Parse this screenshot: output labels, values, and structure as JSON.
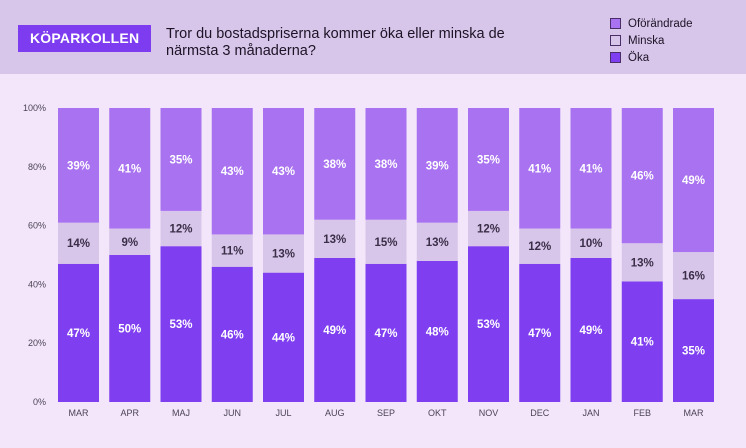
{
  "brand": "KÖPARKOLLEN",
  "question": "Tror du bostadspriserna kommer öka eller minska de närmsta 3 månaderna?",
  "colors": {
    "okar": "#7f3ff0",
    "minskar": "#d8c6ea",
    "oforandrade": "#a972f0"
  },
  "legend": [
    {
      "label": "Oförändrade",
      "color": "#a972f0"
    },
    {
      "label": "Minska",
      "color": "#d8c6ea"
    },
    {
      "label": "Öka",
      "color": "#7f3ff0"
    }
  ],
  "chart_data": {
    "type": "bar",
    "stacked": true,
    "title": "Tror du bostadspriserna kommer öka eller minska de närmsta 3 månaderna?",
    "categories": [
      "MAR",
      "APR",
      "MAJ",
      "JUN",
      "JUL",
      "AUG",
      "SEP",
      "OKT",
      "NOV",
      "DEC",
      "JAN",
      "FEB",
      "MAR"
    ],
    "series": [
      {
        "name": "Öka",
        "values": [
          47,
          50,
          53,
          46,
          44,
          49,
          47,
          48,
          53,
          47,
          49,
          41,
          35
        ]
      },
      {
        "name": "Minska",
        "values": [
          14,
          9,
          12,
          11,
          13,
          13,
          15,
          13,
          12,
          12,
          10,
          13,
          16
        ]
      },
      {
        "name": "Oförändrade",
        "values": [
          39,
          41,
          35,
          43,
          43,
          38,
          38,
          39,
          35,
          41,
          41,
          46,
          49
        ]
      }
    ],
    "yticks": [
      "0%",
      "20%",
      "40%",
      "60%",
      "80%",
      "100%"
    ],
    "ylim": [
      0,
      100
    ],
    "legend_position": "top-right"
  }
}
